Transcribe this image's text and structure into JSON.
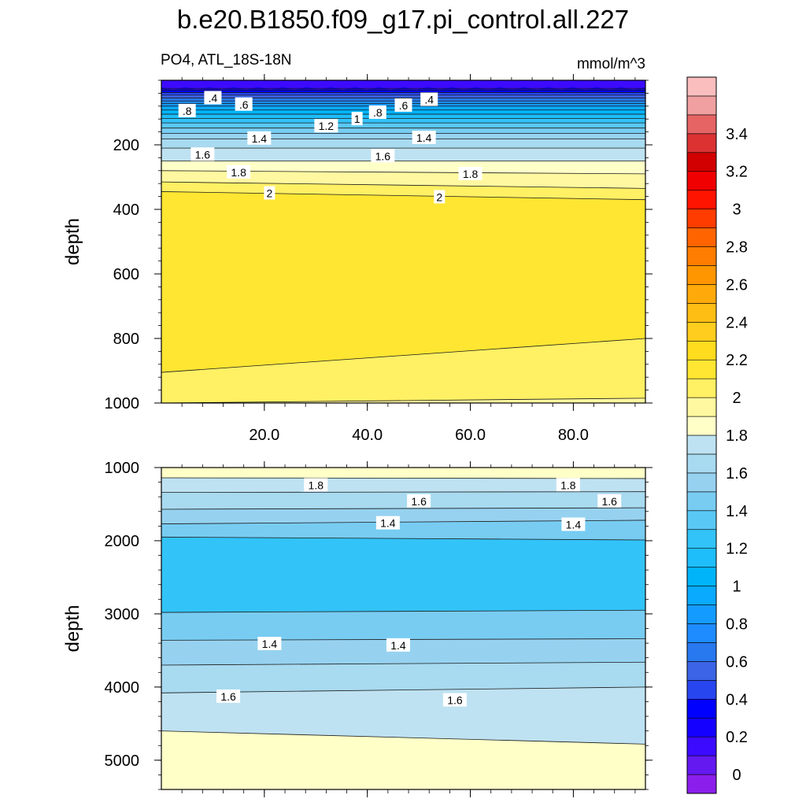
{
  "chart_data": {
    "type": "contour",
    "title": "b.e20.B1850.f09_g17.pi_control.all.227",
    "variable_label": "PO4, ATL_18S-18N",
    "units_label": "mmol/m^3",
    "colorbar": {
      "levels": [
        0,
        0.1,
        0.2,
        0.3,
        0.4,
        0.5,
        0.6,
        0.7,
        0.8,
        0.9,
        1.0,
        1.1,
        1.2,
        1.3,
        1.4,
        1.5,
        1.6,
        1.7,
        1.8,
        1.9,
        2.0,
        2.1,
        2.2,
        2.3,
        2.4,
        2.5,
        2.6,
        2.7,
        2.8,
        2.9,
        3.0,
        3.1,
        3.2,
        3.3,
        3.4,
        3.5
      ],
      "colors": [
        "#8C1EEB",
        "#6419F0",
        "#3C0AFF",
        "#1400FF",
        "#0000FF",
        "#2846F0",
        "#3C64E6",
        "#2878F0",
        "#1E8CFF",
        "#149BFF",
        "#0AAAFF",
        "#00B4FA",
        "#1EBEFA",
        "#32C3F8",
        "#5AC8F5",
        "#78CCF2",
        "#96D2F0",
        "#A8DAF0",
        "#BEE2F2",
        "#FFFFC8",
        "#FFF8A0",
        "#FFF064",
        "#FFE632",
        "#FFDC1E",
        "#FFCD1E",
        "#FFBE14",
        "#FFAA0A",
        "#FF9600",
        "#FF7D00",
        "#FF6400",
        "#FF3C00",
        "#FF1400",
        "#F00000",
        "#D20000",
        "#DC3232",
        "#E66464",
        "#F0A0A0",
        "#FABEBE"
      ],
      "tick_labels": [
        "0",
        "0.2",
        "0.4",
        "0.6",
        "0.8",
        "1",
        "1.2",
        "1.4",
        "1.6",
        "1.8",
        "2",
        "2.2",
        "2.4",
        "2.6",
        "2.8",
        "3",
        "3.2",
        "3.4"
      ]
    },
    "panels": [
      {
        "name": "upper",
        "ylabel": "depth",
        "xlim": [
          0,
          94
        ],
        "ylim": [
          0,
          1000
        ],
        "y_reversed": true,
        "xticks": [
          20,
          40,
          60,
          80
        ],
        "xtick_labels": [
          "20.0",
          "40.0",
          "60.0",
          "80.0"
        ],
        "yticks": [
          200,
          400,
          600,
          800,
          1000
        ],
        "ytick_labels": [
          "200",
          "400",
          "600",
          "800",
          "1000"
        ],
        "boundary_depths_left": [
          25,
          30,
          38,
          46,
          55,
          64,
          72,
          80,
          92,
          105,
          118,
          132,
          148,
          165,
          182,
          210,
          250,
          280,
          315,
          345,
          450,
          1000
        ],
        "boundary_depths_right": [
          25,
          30,
          38,
          46,
          55,
          64,
          72,
          80,
          92,
          105,
          118,
          132,
          148,
          165,
          182,
          210,
          250,
          290,
          335,
          370,
          530,
          1000
        ],
        "band_values": [
          0.2,
          0.3,
          0.4,
          0.5,
          0.6,
          0.7,
          0.8,
          0.9,
          1.0,
          1.1,
          1.2,
          1.3,
          1.4,
          1.5,
          1.6,
          1.7,
          1.8,
          1.9,
          2.0,
          2.1
        ],
        "deep_band": {
          "value": 2.0,
          "top_left": 905,
          "top_right": 800
        },
        "deep_band2": {
          "value": 1.9,
          "top_left": 1000,
          "top_right": 985
        },
        "contour_labels": [
          {
            "text": ".4",
            "x": 10,
            "y": 55
          },
          {
            "text": ".6",
            "x": 16,
            "y": 75
          },
          {
            "text": ".8",
            "x": 5,
            "y": 95
          },
          {
            "text": "1.2",
            "x": 32,
            "y": 142
          },
          {
            "text": "1",
            "x": 38,
            "y": 120
          },
          {
            "text": ".8",
            "x": 42,
            "y": 100
          },
          {
            "text": ".6",
            "x": 47,
            "y": 78
          },
          {
            "text": ".4",
            "x": 52,
            "y": 60
          },
          {
            "text": "1.4",
            "x": 19,
            "y": 180
          },
          {
            "text": "1.4",
            "x": 51,
            "y": 178
          },
          {
            "text": "1.6",
            "x": 8,
            "y": 230
          },
          {
            "text": "1.6",
            "x": 43,
            "y": 235
          },
          {
            "text": "1.8",
            "x": 15,
            "y": 285
          },
          {
            "text": "1.8",
            "x": 60,
            "y": 290
          },
          {
            "text": "2",
            "x": 21,
            "y": 350
          },
          {
            "text": "2",
            "x": 54,
            "y": 362
          }
        ]
      },
      {
        "name": "lower",
        "ylabel": "depth",
        "xlim": [
          0,
          94
        ],
        "ylim": [
          1000,
          5400
        ],
        "y_reversed": true,
        "xticks": [
          20,
          40,
          60,
          80
        ],
        "yticks": [
          1000,
          2000,
          3000,
          4000,
          5000
        ],
        "ytick_labels": [
          "1000",
          "2000",
          "3000",
          "4000",
          "5000"
        ],
        "bands": [
          {
            "value": 1.8,
            "top_left": 1000,
            "top_right": 1000,
            "color_index": 19
          },
          {
            "value": 1.7,
            "top_left": 1140,
            "top_right": 1150,
            "color_index": 18
          },
          {
            "value": 1.6,
            "top_left": 1340,
            "top_right": 1330,
            "color_index": 17
          },
          {
            "value": 1.5,
            "top_left": 1570,
            "top_right": 1550,
            "color_index": 16
          },
          {
            "value": 1.4,
            "top_left": 1770,
            "top_right": 1720,
            "color_index": 15
          },
          {
            "value": 1.3,
            "top_left": 1950,
            "top_right": 1990,
            "color_index": 13
          },
          {
            "value": 1.3,
            "top_left": 2980,
            "top_right": 2950,
            "color_index": 15
          },
          {
            "value": 1.4,
            "top_left": 3360,
            "top_right": 3340,
            "color_index": 16
          },
          {
            "value": 1.5,
            "top_left": 3700,
            "top_right": 3660,
            "color_index": 17
          },
          {
            "value": 1.6,
            "top_left": 4080,
            "top_right": 4000,
            "color_index": 18
          },
          {
            "value": 1.7,
            "top_left": 4600,
            "top_right": 4780,
            "color_index": 19
          }
        ],
        "contour_labels": [
          {
            "text": "1.8",
            "x": 30,
            "y": 1240
          },
          {
            "text": "1.8",
            "x": 79,
            "y": 1240
          },
          {
            "text": "1.6",
            "x": 50,
            "y": 1460
          },
          {
            "text": "1.6",
            "x": 87,
            "y": 1460
          },
          {
            "text": "1.4",
            "x": 44,
            "y": 1760
          },
          {
            "text": "1.4",
            "x": 80,
            "y": 1780
          },
          {
            "text": "1.4",
            "x": 21,
            "y": 3410
          },
          {
            "text": "1.4",
            "x": 46,
            "y": 3430
          },
          {
            "text": "1.6",
            "x": 13,
            "y": 4130
          },
          {
            "text": "1.6",
            "x": 57,
            "y": 4180
          }
        ]
      }
    ]
  }
}
